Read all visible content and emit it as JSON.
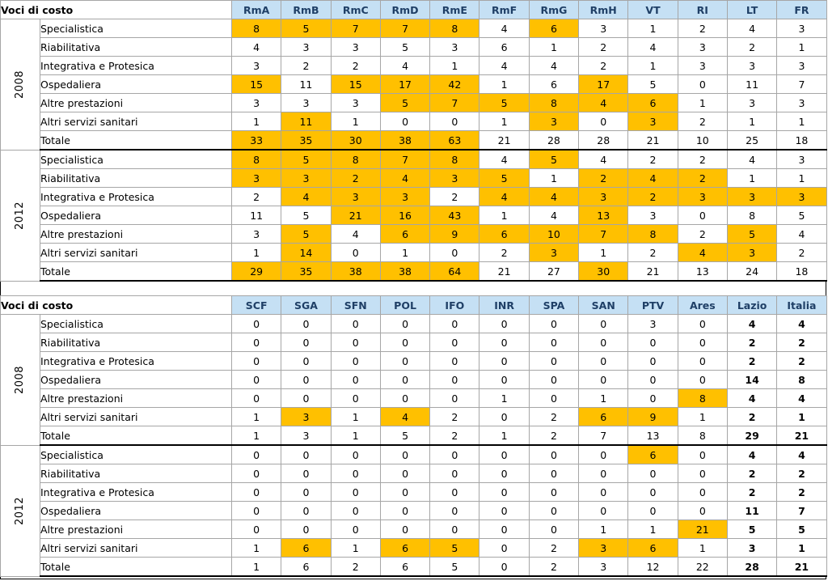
{
  "tables": [
    {
      "corner": "Voci di costo",
      "columns": [
        "RmA",
        "RmB",
        "RmC",
        "RmD",
        "RmE",
        "RmF",
        "RmG",
        "RmH",
        "VT",
        "RI",
        "LT",
        "FR"
      ],
      "groups": [
        {
          "year": "2008",
          "rows": [
            {
              "label": "Specialistica",
              "values": [
                "8",
                "5",
                "7",
                "7",
                "8",
                "4",
                "6",
                "3",
                "1",
                "2",
                "4",
                "3"
              ],
              "hl": [
                1,
                1,
                1,
                1,
                1,
                0,
                1,
                0,
                0,
                0,
                0,
                0
              ]
            },
            {
              "label": "Riabilitativa",
              "values": [
                "4",
                "3",
                "3",
                "5",
                "3",
                "6",
                "1",
                "2",
                "4",
                "3",
                "2",
                "1"
              ],
              "hl": [
                0,
                0,
                0,
                0,
                0,
                0,
                0,
                0,
                0,
                0,
                0,
                0
              ]
            },
            {
              "label": "Integrativa e Protesica",
              "values": [
                "3",
                "2",
                "2",
                "4",
                "1",
                "4",
                "4",
                "2",
                "1",
                "3",
                "3",
                "3"
              ],
              "hl": [
                0,
                0,
                0,
                0,
                0,
                0,
                0,
                0,
                0,
                0,
                0,
                0
              ]
            },
            {
              "label": "Ospedaliera",
              "values": [
                "15",
                "11",
                "15",
                "17",
                "42",
                "1",
                "6",
                "17",
                "5",
                "0",
                "11",
                "7"
              ],
              "hl": [
                1,
                0,
                1,
                1,
                1,
                0,
                0,
                1,
                0,
                0,
                0,
                0
              ]
            },
            {
              "label": "Altre prestazioni",
              "values": [
                "3",
                "3",
                "3",
                "5",
                "7",
                "5",
                "8",
                "4",
                "6",
                "1",
                "3",
                "3"
              ],
              "hl": [
                0,
                0,
                0,
                1,
                1,
                1,
                1,
                1,
                1,
                0,
                0,
                0
              ]
            },
            {
              "label": "Altri servizi sanitari",
              "values": [
                "1",
                "11",
                "1",
                "0",
                "0",
                "1",
                "3",
                "0",
                "3",
                "2",
                "1",
                "1"
              ],
              "hl": [
                0,
                1,
                0,
                0,
                0,
                0,
                1,
                0,
                1,
                0,
                0,
                0
              ]
            },
            {
              "label": "Totale",
              "values": [
                "33",
                "35",
                "30",
                "38",
                "63",
                "21",
                "28",
                "28",
                "21",
                "10",
                "25",
                "18"
              ],
              "hl": [
                1,
                1,
                1,
                1,
                1,
                0,
                0,
                0,
                0,
                0,
                0,
                0
              ]
            }
          ]
        },
        {
          "year": "2012",
          "rows": [
            {
              "label": "Specialistica",
              "values": [
                "8",
                "5",
                "8",
                "7",
                "8",
                "4",
                "5",
                "4",
                "2",
                "2",
                "4",
                "3"
              ],
              "hl": [
                1,
                1,
                1,
                1,
                1,
                0,
                1,
                0,
                0,
                0,
                0,
                0
              ]
            },
            {
              "label": "Riabilitativa",
              "values": [
                "3",
                "3",
                "2",
                "4",
                "3",
                "5",
                "1",
                "2",
                "4",
                "2",
                "1",
                "1"
              ],
              "hl": [
                1,
                1,
                1,
                1,
                1,
                1,
                0,
                1,
                1,
                1,
                0,
                0
              ]
            },
            {
              "label": "Integrativa e Protesica",
              "values": [
                "2",
                "4",
                "3",
                "3",
                "2",
                "4",
                "4",
                "3",
                "2",
                "3",
                "3",
                "3"
              ],
              "hl": [
                0,
                1,
                1,
                1,
                0,
                1,
                1,
                1,
                1,
                1,
                1,
                1
              ]
            },
            {
              "label": "Ospedaliera",
              "values": [
                "11",
                "5",
                "21",
                "16",
                "43",
                "1",
                "4",
                "13",
                "3",
                "0",
                "8",
                "5"
              ],
              "hl": [
                0,
                0,
                1,
                1,
                1,
                0,
                0,
                1,
                0,
                0,
                0,
                0
              ]
            },
            {
              "label": "Altre prestazioni",
              "values": [
                "3",
                "5",
                "4",
                "6",
                "9",
                "6",
                "10",
                "7",
                "8",
                "2",
                "5",
                "4"
              ],
              "hl": [
                0,
                1,
                0,
                1,
                1,
                1,
                1,
                1,
                1,
                0,
                1,
                0
              ]
            },
            {
              "label": "Altri servizi sanitari",
              "values": [
                "1",
                "14",
                "0",
                "1",
                "0",
                "2",
                "3",
                "1",
                "2",
                "4",
                "3",
                "2"
              ],
              "hl": [
                0,
                1,
                0,
                0,
                0,
                0,
                1,
                0,
                0,
                1,
                1,
                0
              ]
            },
            {
              "label": "Totale",
              "values": [
                "29",
                "35",
                "38",
                "38",
                "64",
                "21",
                "27",
                "30",
                "21",
                "13",
                "24",
                "18"
              ],
              "hl": [
                1,
                1,
                1,
                1,
                1,
                0,
                0,
                1,
                0,
                0,
                0,
                0
              ]
            }
          ]
        }
      ]
    },
    {
      "corner": "Voci di costo",
      "columns": [
        "SCF",
        "SGA",
        "SFN",
        "POL",
        "IFO",
        "INR",
        "SPA",
        "SAN",
        "PTV",
        "Ares",
        "Lazio",
        "Italia"
      ],
      "bold_last": 2,
      "groups": [
        {
          "year": "2008",
          "rows": [
            {
              "label": "Specialistica",
              "values": [
                "0",
                "0",
                "0",
                "0",
                "0",
                "0",
                "0",
                "0",
                "3",
                "0",
                "4",
                "4"
              ],
              "hl": [
                0,
                0,
                0,
                0,
                0,
                0,
                0,
                0,
                0,
                0,
                0,
                0
              ]
            },
            {
              "label": "Riabilitativa",
              "values": [
                "0",
                "0",
                "0",
                "0",
                "0",
                "0",
                "0",
                "0",
                "0",
                "0",
                "2",
                "2"
              ],
              "hl": [
                0,
                0,
                0,
                0,
                0,
                0,
                0,
                0,
                0,
                0,
                0,
                0
              ]
            },
            {
              "label": "Integrativa e Protesica",
              "values": [
                "0",
                "0",
                "0",
                "0",
                "0",
                "0",
                "0",
                "0",
                "0",
                "0",
                "2",
                "2"
              ],
              "hl": [
                0,
                0,
                0,
                0,
                0,
                0,
                0,
                0,
                0,
                0,
                0,
                0
              ]
            },
            {
              "label": "Ospedaliera",
              "values": [
                "0",
                "0",
                "0",
                "0",
                "0",
                "0",
                "0",
                "0",
                "0",
                "0",
                "14",
                "8"
              ],
              "hl": [
                0,
                0,
                0,
                0,
                0,
                0,
                0,
                0,
                0,
                0,
                0,
                0
              ]
            },
            {
              "label": "Altre prestazioni",
              "values": [
                "0",
                "0",
                "0",
                "0",
                "0",
                "1",
                "0",
                "1",
                "0",
                "8",
                "4",
                "4"
              ],
              "hl": [
                0,
                0,
                0,
                0,
                0,
                0,
                0,
                0,
                0,
                1,
                0,
                0
              ]
            },
            {
              "label": "Altri servizi sanitari",
              "values": [
                "1",
                "3",
                "1",
                "4",
                "2",
                "0",
                "2",
                "6",
                "9",
                "1",
                "2",
                "1"
              ],
              "hl": [
                0,
                1,
                0,
                1,
                0,
                0,
                0,
                1,
                1,
                0,
                0,
                0
              ]
            },
            {
              "label": "Totale",
              "values": [
                "1",
                "3",
                "1",
                "5",
                "2",
                "1",
                "2",
                "7",
                "13",
                "8",
                "29",
                "21"
              ],
              "hl": [
                0,
                0,
                0,
                0,
                0,
                0,
                0,
                0,
                0,
                0,
                0,
                0
              ]
            }
          ]
        },
        {
          "year": "2012",
          "rows": [
            {
              "label": "Specialistica",
              "values": [
                "0",
                "0",
                "0",
                "0",
                "0",
                "0",
                "0",
                "0",
                "6",
                "0",
                "4",
                "4"
              ],
              "hl": [
                0,
                0,
                0,
                0,
                0,
                0,
                0,
                0,
                1,
                0,
                0,
                0
              ]
            },
            {
              "label": "Riabilitativa",
              "values": [
                "0",
                "0",
                "0",
                "0",
                "0",
                "0",
                "0",
                "0",
                "0",
                "0",
                "2",
                "2"
              ],
              "hl": [
                0,
                0,
                0,
                0,
                0,
                0,
                0,
                0,
                0,
                0,
                0,
                0
              ]
            },
            {
              "label": "Integrativa e Protesica",
              "values": [
                "0",
                "0",
                "0",
                "0",
                "0",
                "0",
                "0",
                "0",
                "0",
                "0",
                "2",
                "2"
              ],
              "hl": [
                0,
                0,
                0,
                0,
                0,
                0,
                0,
                0,
                0,
                0,
                0,
                0
              ]
            },
            {
              "label": "Ospedaliera",
              "values": [
                "0",
                "0",
                "0",
                "0",
                "0",
                "0",
                "0",
                "0",
                "0",
                "0",
                "11",
                "7"
              ],
              "hl": [
                0,
                0,
                0,
                0,
                0,
                0,
                0,
                0,
                0,
                0,
                0,
                0
              ]
            },
            {
              "label": "Altre prestazioni",
              "values": [
                "0",
                "0",
                "0",
                "0",
                "0",
                "0",
                "0",
                "1",
                "1",
                "21",
                "5",
                "5"
              ],
              "hl": [
                0,
                0,
                0,
                0,
                0,
                0,
                0,
                0,
                0,
                1,
                0,
                0
              ]
            },
            {
              "label": "Altri servizi sanitari",
              "values": [
                "1",
                "6",
                "1",
                "6",
                "5",
                "0",
                "2",
                "3",
                "6",
                "1",
                "3",
                "1"
              ],
              "hl": [
                0,
                1,
                0,
                1,
                1,
                0,
                0,
                1,
                1,
                0,
                0,
                0
              ]
            },
            {
              "label": "Totale",
              "values": [
                "1",
                "6",
                "2",
                "6",
                "5",
                "0",
                "2",
                "3",
                "12",
                "22",
                "28",
                "21"
              ],
              "hl": [
                0,
                0,
                0,
                0,
                0,
                0,
                0,
                0,
                0,
                0,
                0,
                0
              ]
            }
          ]
        }
      ]
    }
  ],
  "colors": {
    "highlight": "#ffc000",
    "header_bg": "#c5e0f4",
    "header_text": "#1f3f66"
  }
}
